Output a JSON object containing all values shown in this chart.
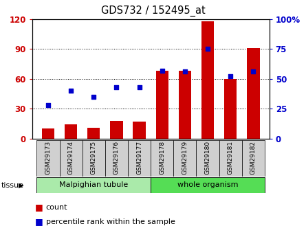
{
  "title": "GDS732 / 152495_at",
  "categories": [
    "GSM29173",
    "GSM29174",
    "GSM29175",
    "GSM29176",
    "GSM29177",
    "GSM29178",
    "GSM29179",
    "GSM29180",
    "GSM29181",
    "GSM29182"
  ],
  "counts": [
    10,
    14,
    11,
    18,
    17,
    68,
    68,
    118,
    60,
    91
  ],
  "percentiles": [
    28,
    40,
    35,
    43,
    43,
    57,
    56,
    75,
    52,
    56
  ],
  "bar_color": "#cc0000",
  "dot_color": "#0000cc",
  "yleft_min": 0,
  "yleft_max": 120,
  "yright_min": 0,
  "yright_max": 100,
  "yticks_left": [
    0,
    30,
    60,
    90,
    120
  ],
  "yticks_right": [
    0,
    25,
    50,
    75,
    100
  ],
  "ytick_labels_left": [
    "0",
    "30",
    "60",
    "90",
    "120"
  ],
  "ytick_labels_right": [
    "0",
    "25",
    "50",
    "75",
    "100%"
  ],
  "tissue_groups": [
    {
      "label": "Malpighian tubule",
      "start": 0,
      "end": 4,
      "color": "#aaeaaa"
    },
    {
      "label": "whole organism",
      "start": 5,
      "end": 9,
      "color": "#55dd55"
    }
  ],
  "tissue_label": "tissue",
  "legend_count_label": "count",
  "legend_pct_label": "percentile rank within the sample",
  "bar_color_legend": "#cc0000",
  "dot_color_legend": "#0000cc",
  "tick_color_left": "#cc0000",
  "tick_color_right": "#0000cc",
  "grid_linestyle": ":",
  "grid_color": "black",
  "bg_color": "white"
}
